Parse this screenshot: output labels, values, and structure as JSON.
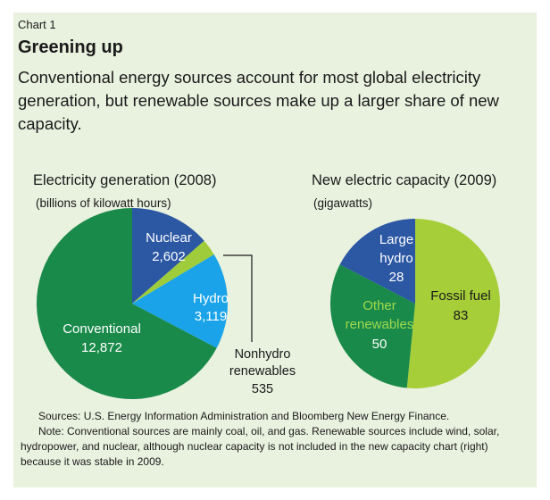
{
  "chart_label": "Chart 1",
  "title": "Greening up",
  "subtitle": "Conventional energy sources account for most global electricity generation, but renewable sources make up a larger share of new capacity.",
  "chart_data": [
    {
      "type": "pie",
      "title": "Electricity generation (2008)",
      "unit_label": "(billions of kilowatt hours)",
      "slices": [
        {
          "label": "Nuclear",
          "value": 2602,
          "display": "2,602",
          "color": "#2b57a3"
        },
        {
          "label": "Nonhydro renewables",
          "value": 535,
          "display": "535",
          "color": "#9fcc3b"
        },
        {
          "label": "Hydro",
          "value": 3119,
          "display": "3,119",
          "color": "#1aa3e8"
        },
        {
          "label": "Conventional",
          "value": 12872,
          "display": "12,872",
          "color": "#1a8a4a"
        }
      ]
    },
    {
      "type": "pie",
      "title": "New electric capacity (2009)",
      "unit_label": "(gigawatts)",
      "slices": [
        {
          "label": "Fossil fuel",
          "value": 83,
          "display": "83",
          "color": "#a6ce39"
        },
        {
          "label": "Other renewables",
          "value": 50,
          "display": "50",
          "color": "#1a8a4a"
        },
        {
          "label": "Large hydro",
          "value": 28,
          "display": "28",
          "color": "#2b57a3"
        }
      ]
    }
  ],
  "footnote": {
    "sources": "Sources: U.S. Energy Information Administration and Bloomberg New Energy Finance.",
    "note": "Note: Conventional sources are mainly coal, oil, and gas. Renewable sources include wind, solar, hydropower, and nuclear, although nuclear capacity is not included in the new capacity chart (right) because it was stable in 2009."
  }
}
